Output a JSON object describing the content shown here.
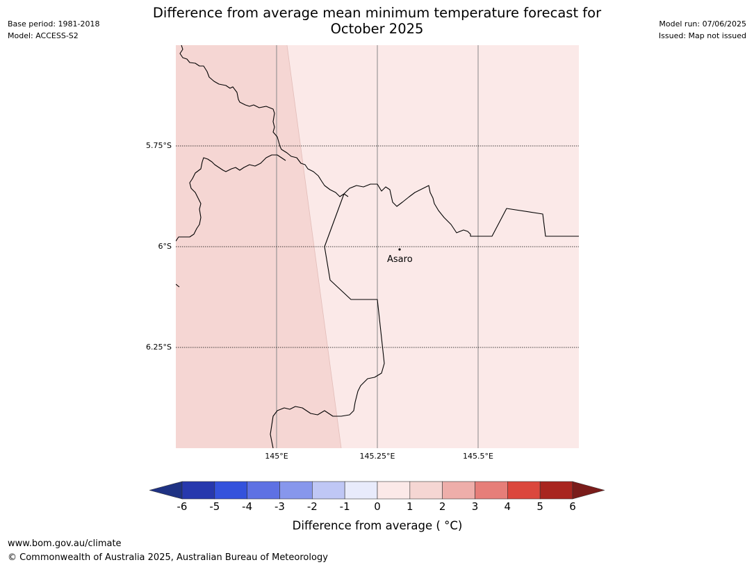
{
  "header": {
    "base_period": "Base period: 1981-2018",
    "model": "Model: ACCESS-S2",
    "model_run": "Model run: 07/06/2025",
    "issued": "Issued: Map not issued",
    "title_line1": "Difference from average mean minimum temperature forecast for",
    "title_line2": "October 2025"
  },
  "map": {
    "lat_labels": [
      "5.75°S",
      "6°S",
      "6.25°S"
    ],
    "lon_labels": [
      "145°E",
      "145.25°E",
      "145.5°E"
    ],
    "place": "Asaro",
    "fill_colors": {
      "zone_1_to_2": "#f5d6d3",
      "zone_0_to_1": "#fbe9e8"
    }
  },
  "colorbar": {
    "ticks": [
      "-6",
      "-5",
      "-4",
      "-3",
      "-2",
      "-1",
      "0",
      "1",
      "2",
      "3",
      "4",
      "5",
      "6"
    ],
    "colors": [
      "#1f3283",
      "#2738ad",
      "#3452dc",
      "#5e71e3",
      "#8797ec",
      "#bfc7f5",
      "#e8ebfb",
      "#fbe9e8",
      "#f5d6d3",
      "#eeaeaa",
      "#e67e79",
      "#db473d",
      "#a8251f",
      "#7a1c1a"
    ],
    "label": "Difference from average ( °C)"
  },
  "footer": {
    "url": "www.bom.gov.au/climate",
    "copyright": "© Commonwealth of Australia 2025, Australian Bureau of Meteorology"
  }
}
